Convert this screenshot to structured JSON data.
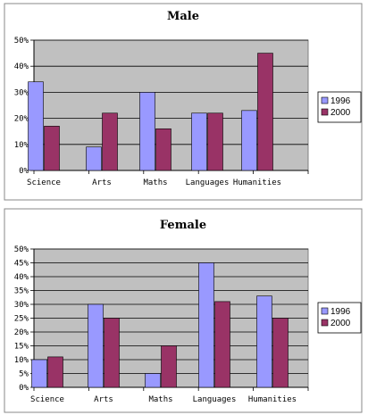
{
  "chart_data": [
    {
      "type": "bar",
      "title": "Male",
      "categories": [
        "Science",
        "Arts",
        "Maths",
        "Languages",
        "Humanities"
      ],
      "series": [
        {
          "name": "1996",
          "values": [
            34,
            9,
            30,
            22,
            23
          ]
        },
        {
          "name": "2000",
          "values": [
            17,
            22,
            16,
            22,
            45
          ]
        }
      ],
      "yticks": [
        "0%",
        "10%",
        "20%",
        "30%",
        "40%",
        "50%"
      ],
      "ylim": [
        0,
        50
      ],
      "grid": true,
      "legend": "right"
    },
    {
      "type": "bar",
      "title": "Female",
      "categories": [
        "Science",
        "Arts",
        "Maths",
        "Languages",
        "Humanities"
      ],
      "series": [
        {
          "name": "1996",
          "values": [
            10,
            30,
            5,
            45,
            33
          ]
        },
        {
          "name": "2000",
          "values": [
            11,
            25,
            15,
            31,
            25
          ]
        }
      ],
      "yticks": [
        "0%",
        "5%",
        "10%",
        "15%",
        "20%",
        "25%",
        "30%",
        "35%",
        "40%",
        "45%",
        "50%"
      ],
      "ylim": [
        0,
        50
      ],
      "grid": true,
      "legend": "right"
    }
  ],
  "colors": {
    "series_1996": "#9999ff",
    "series_2000": "#993366",
    "plot_background": "#c0c0c0"
  }
}
